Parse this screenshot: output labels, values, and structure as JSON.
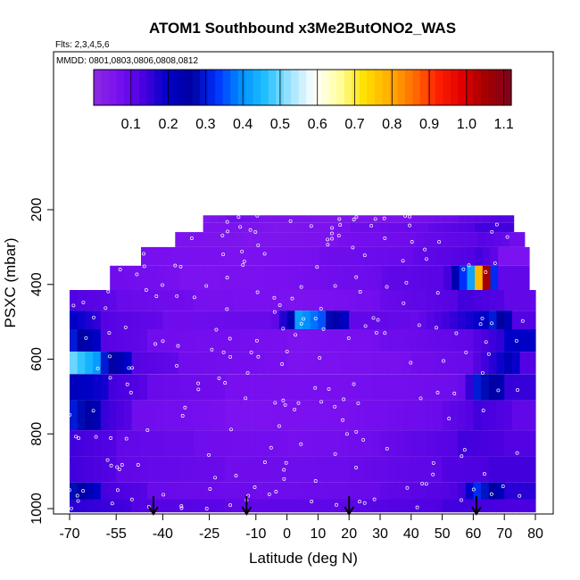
{
  "chart_data": {
    "type": "heatmap",
    "title": "ATOM1 Southbound x3Me2ButONO2_WAS",
    "subtitle_flights": "Flts: 2,3,4,5,6",
    "subtitle_dates": "MMDD: 0801,0803,0806,0808,0812",
    "xlabel": "Latitude (deg N)",
    "ylabel": "PSXC (mbar)",
    "x_ticks": [
      -70,
      -55,
      -40,
      -25,
      -10,
      0,
      10,
      20,
      30,
      40,
      50,
      60,
      70,
      80
    ],
    "x_tick_labels": [
      "-70",
      "-55",
      "-40",
      "-25",
      "-10",
      "0",
      "10",
      "20",
      "30",
      "40",
      "50",
      "60",
      "70",
      "80"
    ],
    "y_ticks": [
      200,
      400,
      600,
      800,
      1000
    ],
    "y_tick_labels": [
      "200",
      "400",
      "600",
      "800",
      "1000"
    ],
    "y_reversed": true,
    "colorbar_ticks": [
      0.1,
      0.2,
      0.3,
      0.4,
      0.5,
      0.6,
      0.7,
      0.8,
      0.9,
      1.0,
      1.1
    ],
    "colorbar_tick_labels": [
      "0.1",
      "0.2",
      "0.3",
      "0.4",
      "0.5",
      "0.6",
      "0.7",
      "0.8",
      "0.9",
      "1.0",
      "1.1"
    ],
    "colorbar_range": [
      0.0,
      1.12
    ],
    "colorbar_colors": [
      "#8a2be2",
      "#7a10f0",
      "#4b00e0",
      "#0000c8",
      "#0000a0",
      "#0030ff",
      "#0090ff",
      "#20c0ff",
      "#a0e4ff",
      "#ffffff",
      "#ffffa0",
      "#ffe000",
      "#ffb000",
      "#ff7000",
      "#ff2000",
      "#e00000",
      "#a00000",
      "#800020"
    ],
    "arrows_lat": [
      -43,
      -13,
      20,
      61
    ],
    "layers": [
      {
        "p": [
          215,
          235
        ],
        "x0": -27,
        "x1": 72,
        "segs": [
          [
            -27,
            0.05
          ],
          [
            -20,
            0.08
          ],
          [
            -10,
            0.06
          ],
          [
            10,
            0.05
          ],
          [
            40,
            0.07
          ],
          [
            55,
            0.1
          ],
          [
            65,
            0.12
          ]
        ]
      },
      {
        "p": [
          235,
          260
        ],
        "x0": -27,
        "x1": 72,
        "segs": [
          [
            -27,
            0.06
          ],
          [
            -5,
            0.05
          ],
          [
            20,
            0.08
          ],
          [
            45,
            0.1
          ],
          [
            60,
            0.14
          ]
        ]
      },
      {
        "p": [
          260,
          300
        ],
        "x0": -36,
        "x1": 76,
        "segs": [
          [
            -36,
            0.06
          ],
          [
            -15,
            0.05
          ],
          [
            15,
            0.07
          ],
          [
            40,
            0.09
          ],
          [
            60,
            0.12
          ],
          [
            70,
            0.08
          ]
        ]
      },
      {
        "p": [
          300,
          350
        ],
        "x0": -47,
        "x1": 76,
        "segs": [
          [
            -47,
            0.07
          ],
          [
            -20,
            0.06
          ],
          [
            10,
            0.08
          ],
          [
            40,
            0.1
          ],
          [
            60,
            0.14
          ],
          [
            68,
            0.06
          ]
        ]
      },
      {
        "p": [
          350,
          415
        ],
        "x0": -57,
        "x1": 78,
        "segs": [
          [
            -57,
            0.08
          ],
          [
            -35,
            0.06
          ],
          [
            0,
            0.07
          ],
          [
            30,
            0.1
          ],
          [
            50,
            0.12
          ],
          [
            60,
            0.75
          ],
          [
            63,
            1.05
          ],
          [
            64,
            0.5
          ],
          [
            66,
            0.1
          ]
        ]
      },
      {
        "p": [
          415,
          470
        ],
        "x0": -70,
        "x1": 80,
        "segs": [
          [
            -70,
            0.12
          ],
          [
            -55,
            0.09
          ],
          [
            -30,
            0.07
          ],
          [
            0,
            0.06
          ],
          [
            30,
            0.09
          ],
          [
            55,
            0.14
          ],
          [
            70,
            0.1
          ]
        ]
      },
      {
        "p": [
          470,
          520
        ],
        "x0": -70,
        "x1": 80,
        "segs": [
          [
            -70,
            0.2
          ],
          [
            -62,
            0.12
          ],
          [
            -40,
            0.08
          ],
          [
            -5,
            0.1
          ],
          [
            2,
            0.42
          ],
          [
            12,
            0.28
          ],
          [
            20,
            0.1
          ],
          [
            40,
            0.09
          ],
          [
            65,
            0.3
          ],
          [
            72,
            0.12
          ]
        ]
      },
      {
        "p": [
          520,
          580
        ],
        "x0": -70,
        "x1": 80,
        "segs": [
          [
            -70,
            0.3
          ],
          [
            -62,
            0.12
          ],
          [
            -45,
            0.08
          ],
          [
            0,
            0.06
          ],
          [
            30,
            0.08
          ],
          [
            60,
            0.12
          ],
          [
            70,
            0.2
          ]
        ]
      },
      {
        "p": [
          580,
          640
        ],
        "x0": -70,
        "x1": 80,
        "segs": [
          [
            -70,
            0.5
          ],
          [
            -60,
            0.3
          ],
          [
            -52,
            0.12
          ],
          [
            -35,
            0.08
          ],
          [
            0,
            0.06
          ],
          [
            40,
            0.08
          ],
          [
            58,
            0.1
          ],
          [
            68,
            0.25
          ],
          [
            74,
            0.12
          ]
        ]
      },
      {
        "p": [
          640,
          710
        ],
        "x0": -70,
        "x1": 80,
        "segs": [
          [
            -70,
            0.22
          ],
          [
            -58,
            0.14
          ],
          [
            -45,
            0.09
          ],
          [
            -20,
            0.07
          ],
          [
            20,
            0.07
          ],
          [
            55,
            0.09
          ],
          [
            60,
            0.3
          ],
          [
            70,
            0.15
          ]
        ]
      },
      {
        "p": [
          710,
          790
        ],
        "x0": -70,
        "x1": 80,
        "segs": [
          [
            -70,
            0.3
          ],
          [
            -60,
            0.15
          ],
          [
            -50,
            0.08
          ],
          [
            -20,
            0.06
          ],
          [
            20,
            0.07
          ],
          [
            50,
            0.1
          ],
          [
            60,
            0.14
          ],
          [
            72,
            0.1
          ]
        ]
      },
      {
        "p": [
          790,
          860
        ],
        "x0": -70,
        "x1": 80,
        "segs": [
          [
            -70,
            0.14
          ],
          [
            -55,
            0.1
          ],
          [
            -30,
            0.08
          ],
          [
            0,
            0.07
          ],
          [
            30,
            0.09
          ],
          [
            55,
            0.14
          ],
          [
            70,
            0.12
          ]
        ]
      },
      {
        "p": [
          860,
          930
        ],
        "x0": -70,
        "x1": 80,
        "segs": [
          [
            -70,
            0.14
          ],
          [
            -55,
            0.1
          ],
          [
            -20,
            0.08
          ],
          [
            20,
            0.09
          ],
          [
            50,
            0.12
          ],
          [
            65,
            0.14
          ]
        ]
      },
      {
        "p": [
          930,
          975
        ],
        "x0": -70,
        "x1": 80,
        "segs": [
          [
            -70,
            0.28
          ],
          [
            -62,
            0.14
          ],
          [
            -45,
            0.09
          ],
          [
            -10,
            0.08
          ],
          [
            30,
            0.1
          ],
          [
            55,
            0.14
          ],
          [
            60,
            0.32
          ],
          [
            68,
            0.16
          ]
        ]
      },
      {
        "p": [
          975,
          1010
        ],
        "x0": -70,
        "x1": 80,
        "segs": [
          [
            -70,
            0.16
          ],
          [
            -50,
            0.12
          ],
          [
            -20,
            0.1
          ],
          [
            20,
            0.11
          ],
          [
            50,
            0.14
          ],
          [
            70,
            0.13
          ]
        ]
      }
    ]
  }
}
